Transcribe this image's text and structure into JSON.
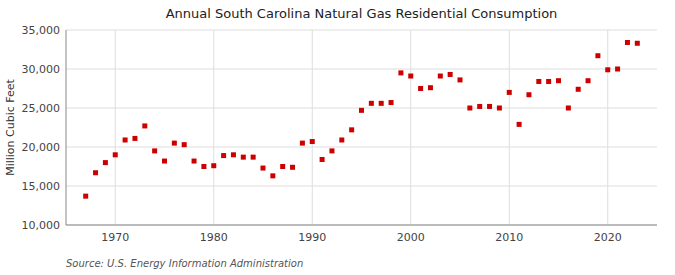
{
  "chart_data": {
    "type": "scatter",
    "title": "Annual South Carolina Natural Gas Residential Consumption",
    "ylabel": "Million Cubic Feet",
    "annotations": [
      "Source: U.S. Energy Information Administration"
    ],
    "color": "#cc0000",
    "marker": "square",
    "grid": true,
    "xlim": [
      1965,
      2025
    ],
    "ylim": [
      10000,
      35000
    ],
    "xticks": [
      1970,
      1980,
      1990,
      2000,
      2010,
      2020
    ],
    "yticks": [
      {
        "value": 10000,
        "label": "10,000"
      },
      {
        "value": 15000,
        "label": "15,000"
      },
      {
        "value": 20000,
        "label": "20,000"
      },
      {
        "value": 25000,
        "label": "25,000"
      },
      {
        "value": 30000,
        "label": "30,000"
      },
      {
        "value": 35000,
        "label": "35,000"
      }
    ],
    "x": [
      1967,
      1968,
      1969,
      1970,
      1971,
      1972,
      1973,
      1974,
      1975,
      1976,
      1977,
      1978,
      1979,
      1980,
      1981,
      1982,
      1983,
      1984,
      1985,
      1986,
      1987,
      1988,
      1989,
      1990,
      1991,
      1992,
      1993,
      1994,
      1995,
      1996,
      1997,
      1998,
      1999,
      2000,
      2001,
      2002,
      2003,
      2004,
      2005,
      2006,
      2007,
      2008,
      2009,
      2010,
      2011,
      2012,
      2013,
      2014,
      2015,
      2016,
      2017,
      2018,
      2019,
      2020,
      2021,
      2022,
      2023
    ],
    "values": [
      13700,
      16700,
      18000,
      19000,
      20900,
      21100,
      22700,
      19500,
      18200,
      20500,
      20300,
      18200,
      17500,
      17600,
      18900,
      19000,
      18700,
      18700,
      17300,
      16300,
      17500,
      17400,
      20500,
      20700,
      18400,
      19500,
      20900,
      22200,
      24700,
      25600,
      25600,
      25700,
      29500,
      29100,
      27500,
      27600,
      29100,
      29300,
      28600,
      25000,
      25200,
      25200,
      25000,
      27000,
      22900,
      26700,
      28400,
      28400,
      28500,
      25000,
      27400,
      28500,
      31700,
      29900,
      30000,
      33400,
      33300
    ]
  }
}
